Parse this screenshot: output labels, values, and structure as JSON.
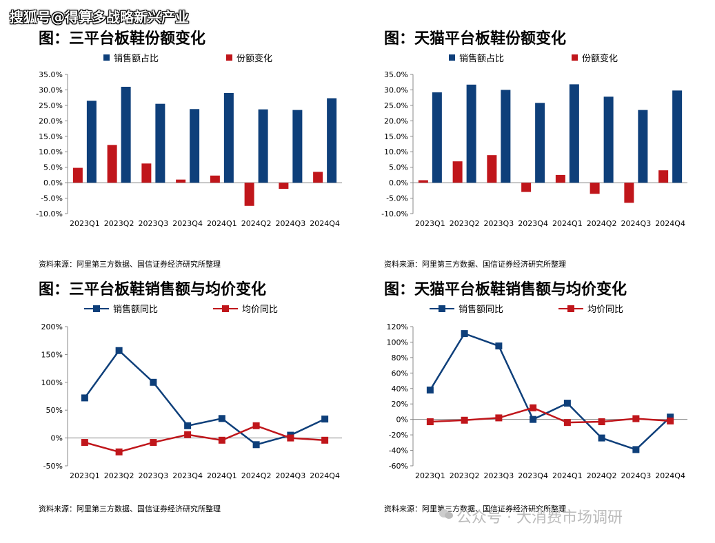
{
  "watermark_top": "搜狐号@得算多战略新兴产业",
  "watermark_bottom": "公众号 · 大消费市场调研",
  "colors": {
    "blue": "#0e3f7a",
    "red": "#c0161b"
  },
  "source_text": "资料来源：阿里第三方数据、国信证券经济研究所整理",
  "chart_data": [
    {
      "id": "c1",
      "type": "bar",
      "title": "图：三平台板鞋份额变化",
      "categories": [
        "2023Q1",
        "2023Q2",
        "2023Q3",
        "2023Q4",
        "2024Q1",
        "2024Q2",
        "2024Q3",
        "2024Q4"
      ],
      "series": [
        {
          "name": "销售额占比",
          "color": "#0e3f7a",
          "values": [
            26.5,
            31.0,
            25.5,
            23.8,
            29.0,
            23.7,
            23.5,
            27.3
          ]
        },
        {
          "name": "份额变化",
          "color": "#c0161b",
          "values": [
            4.8,
            12.2,
            6.2,
            1.0,
            2.3,
            -7.5,
            -2.0,
            3.5
          ]
        }
      ],
      "ylim": [
        -10,
        35
      ],
      "yticks": [
        -10,
        -5,
        0,
        5,
        10,
        15,
        20,
        25,
        30,
        35
      ],
      "ytick_labels": [
        "-10.0%",
        "-5.0%",
        "0.0%",
        "5.0%",
        "10.0%",
        "15.0%",
        "20.0%",
        "25.0%",
        "30.0%",
        "35.0%"
      ],
      "xlabel": "",
      "ylabel": ""
    },
    {
      "id": "c2",
      "type": "bar",
      "title": "图：天猫平台板鞋份额变化",
      "categories": [
        "2023Q1",
        "2023Q2",
        "2023Q3",
        "2023Q4",
        "2024Q1",
        "2024Q2",
        "2024Q3",
        "2024Q4"
      ],
      "series": [
        {
          "name": "销售额占比",
          "color": "#0e3f7a",
          "values": [
            29.2,
            31.7,
            30.0,
            25.8,
            31.8,
            27.8,
            23.5,
            29.8
          ]
        },
        {
          "name": "份额变化",
          "color": "#c0161b",
          "values": [
            0.8,
            6.9,
            8.9,
            -3.0,
            2.5,
            -3.6,
            -6.5,
            4.0
          ]
        }
      ],
      "ylim": [
        -10,
        35
      ],
      "yticks": [
        -10,
        -5,
        0,
        5,
        10,
        15,
        20,
        25,
        30,
        35
      ],
      "ytick_labels": [
        "-10.0%",
        "-5.0%",
        "0.0%",
        "5.0%",
        "10.0%",
        "15.0%",
        "20.0%",
        "25.0%",
        "30.0%",
        "35.0%"
      ],
      "xlabel": "",
      "ylabel": ""
    },
    {
      "id": "c3",
      "type": "line",
      "title": "图：三平台板鞋销售额与均价变化",
      "categories": [
        "2023Q1",
        "2023Q2",
        "2023Q3",
        "2023Q4",
        "2024Q1",
        "2024Q2",
        "2024Q3",
        "2024Q4"
      ],
      "series": [
        {
          "name": "销售额同比",
          "color": "#0e3f7a",
          "values": [
            72,
            157,
            100,
            22,
            35,
            -12,
            5,
            34
          ]
        },
        {
          "name": "均价同比",
          "color": "#c0161b",
          "values": [
            -8,
            -25,
            -8,
            6,
            -4,
            22,
            0,
            -4
          ]
        }
      ],
      "ylim": [
        -50,
        200
      ],
      "yticks": [
        -50,
        0,
        50,
        100,
        150,
        200
      ],
      "ytick_labels": [
        "-50%",
        "0%",
        "50%",
        "100%",
        "150%",
        "200%"
      ],
      "xlabel": "",
      "ylabel": ""
    },
    {
      "id": "c4",
      "type": "line",
      "title": "图：天猫平台板鞋销售额与均价变化",
      "categories": [
        "2023Q1",
        "2023Q2",
        "2023Q3",
        "2023Q4",
        "2024Q1",
        "2024Q2",
        "2024Q3",
        "2024Q4"
      ],
      "series": [
        {
          "name": "销售额同比",
          "color": "#0e3f7a",
          "values": [
            38,
            111,
            95,
            0,
            21,
            -24,
            -39,
            3
          ]
        },
        {
          "name": "均价同比",
          "color": "#c0161b",
          "values": [
            -3,
            -1,
            2,
            15,
            -4,
            -3,
            1,
            -2
          ]
        }
      ],
      "ylim": [
        -60,
        120
      ],
      "yticks": [
        -60,
        -40,
        -20,
        0,
        20,
        40,
        60,
        80,
        100,
        120
      ],
      "ytick_labels": [
        "-60%",
        "-40%",
        "-20%",
        "0%",
        "20%",
        "40%",
        "60%",
        "80%",
        "100%",
        "120%"
      ],
      "xlabel": "",
      "ylabel": ""
    }
  ]
}
